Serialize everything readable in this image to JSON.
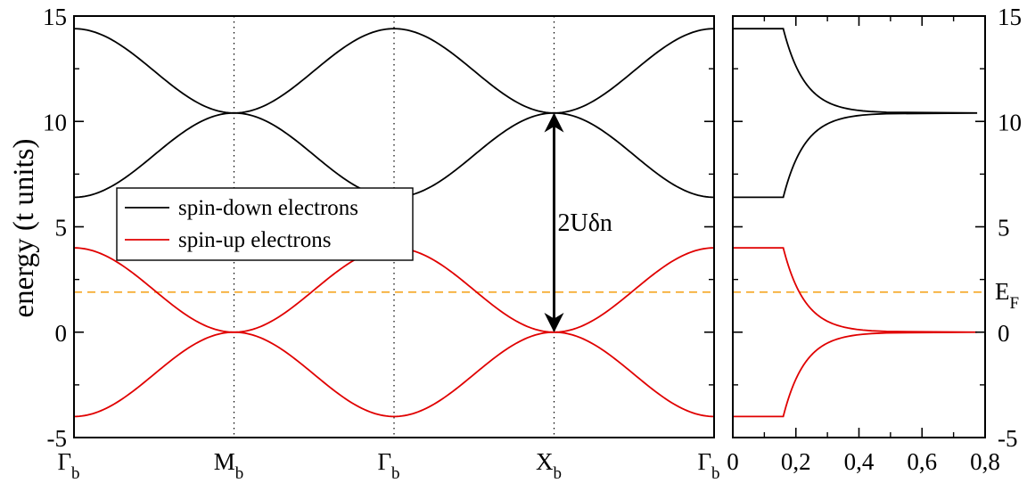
{
  "chart_data": [
    {
      "type": "line",
      "ylabel": "energy (t units)",
      "ylim": [
        -5,
        15
      ],
      "yticks": [
        "-5",
        "0",
        "5",
        "10",
        "15"
      ],
      "xticks": [
        {
          "main": "Γ",
          "sub": "b"
        },
        {
          "main": "M",
          "sub": "b"
        },
        {
          "main": "Γ",
          "sub": "b"
        },
        {
          "main": "X",
          "sub": "b"
        },
        {
          "main": "Γ",
          "sub": "b"
        }
      ],
      "x": [
        0,
        1,
        2,
        3,
        4
      ],
      "vertical_dotted_lines_at": [
        1,
        2,
        3
      ],
      "fermi_level": 1.9,
      "series": [
        {
          "name": "spin-down electrons",
          "color": "#000000",
          "band": "upper",
          "values": [
            14.4,
            10.4,
            14.4,
            10.4,
            14.4
          ]
        },
        {
          "name": "spin-down electrons",
          "color": "#000000",
          "band": "lower",
          "values": [
            6.4,
            10.4,
            6.4,
            10.4,
            6.4
          ]
        },
        {
          "name": "spin-up electrons",
          "color": "#e00000",
          "band": "upper",
          "values": [
            4.0,
            0.0,
            4.0,
            0.0,
            4.0
          ]
        },
        {
          "name": "spin-up electrons",
          "color": "#e00000",
          "band": "lower",
          "values": [
            -4.0,
            0.0,
            -4.0,
            0.0,
            -4.0
          ]
        }
      ],
      "legend": {
        "placement": "center-left",
        "entries": [
          {
            "label": "spin-down electrons",
            "color": "#000000"
          },
          {
            "label": "spin-up electrons",
            "color": "#e00000"
          }
        ]
      },
      "annotation": {
        "text": "2Uδn",
        "x": 3,
        "from_y": 0,
        "to_y": 10.4
      }
    },
    {
      "type": "line",
      "xlim": [
        0,
        0.8
      ],
      "xticks": [
        "0",
        "0,2",
        "0,4",
        "0,6",
        "0,8"
      ],
      "ylim": [
        -5,
        15
      ],
      "yticks": [
        "-5",
        "0",
        "5",
        "10",
        "15"
      ],
      "fermi_label": {
        "main": "E",
        "sub": "F"
      },
      "dos": [
        {
          "name": "spin-down electrons",
          "color": "#000000",
          "band_bottom": 6.4,
          "band_center": 10.4,
          "band_top": 14.4,
          "edge_value": 0.16,
          "peak_value": 0.68
        },
        {
          "name": "spin-up electrons",
          "color": "#e00000",
          "band_bottom": -4.0,
          "band_center": 0.0,
          "band_top": 4.0,
          "edge_value": 0.16,
          "peak_value": 0.68
        }
      ]
    }
  ],
  "colors": {
    "fermi_line": "#f5a623",
    "frame": "#000000"
  }
}
